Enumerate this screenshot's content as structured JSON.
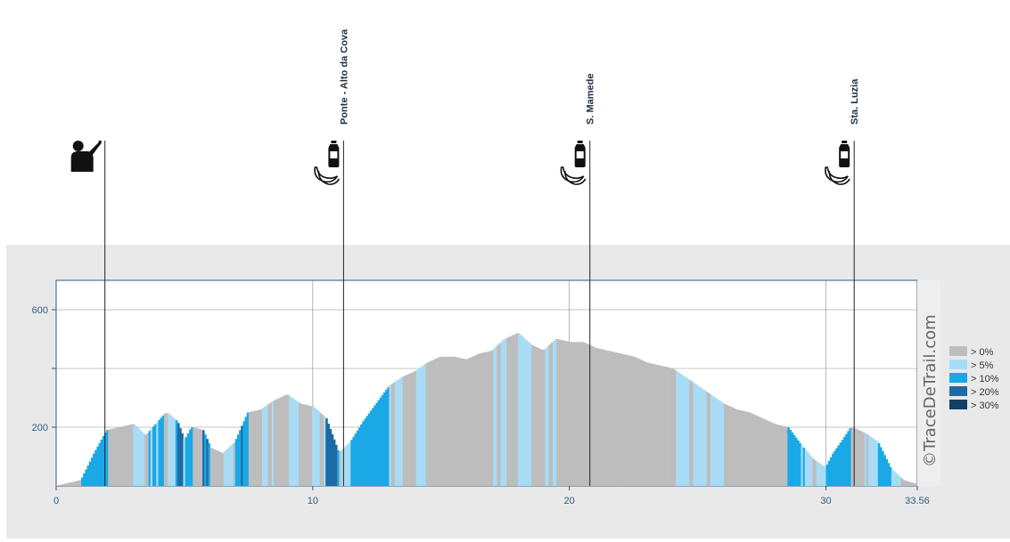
{
  "chart_data": {
    "type": "area",
    "x_range": [
      0,
      33.56
    ],
    "y_range": [
      0,
      700
    ],
    "x_ticks": [
      0,
      10,
      20,
      30,
      33.56
    ],
    "x_tick_labels": [
      "0",
      "10",
      "20",
      "30",
      "33.56"
    ],
    "y_ticks": [
      200,
      600
    ],
    "y_tick_labels": [
      "200",
      "600"
    ],
    "grid": true,
    "legend_position": "right",
    "legend": [
      {
        "label": "> 0%",
        "color": "#bdbdbd"
      },
      {
        "label": "> 5%",
        "color": "#a8dcf5"
      },
      {
        "label": "> 10%",
        "color": "#1ba8e6"
      },
      {
        "label": "> 20%",
        "color": "#1d6aa6"
      },
      {
        "label": "> 30%",
        "color": "#153e66"
      }
    ],
    "elevation_profile": {
      "x": [
        0,
        1,
        1.5,
        2,
        2.5,
        3,
        3.5,
        4,
        4.3,
        4.7,
        5,
        5.3,
        5.7,
        6,
        6.5,
        7,
        7.5,
        8,
        8.5,
        9,
        9.5,
        10,
        10.5,
        11,
        11.5,
        12,
        12.5,
        13,
        13.5,
        14,
        14.5,
        15,
        15.5,
        16,
        16.5,
        17,
        17.5,
        18,
        18.5,
        19,
        19.5,
        20,
        20.5,
        21,
        21.5,
        22,
        22.5,
        23,
        23.5,
        24,
        24.5,
        25,
        25.5,
        26,
        26.5,
        27,
        27.5,
        28,
        28.5,
        29,
        29.5,
        30,
        30.3,
        30.7,
        31,
        31.5,
        32,
        32.5,
        33,
        33.56
      ],
      "y": [
        0,
        20,
        110,
        190,
        200,
        210,
        170,
        220,
        250,
        220,
        150,
        200,
        190,
        130,
        110,
        150,
        250,
        260,
        290,
        310,
        280,
        270,
        230,
        110,
        150,
        220,
        280,
        340,
        370,
        390,
        420,
        440,
        440,
        430,
        450,
        460,
        500,
        520,
        480,
        460,
        500,
        490,
        490,
        470,
        460,
        450,
        440,
        420,
        410,
        400,
        370,
        340,
        310,
        280,
        260,
        250,
        230,
        210,
        200,
        140,
        90,
        60,
        110,
        160,
        200,
        180,
        150,
        60,
        20,
        5
      ]
    },
    "markers": [
      {
        "x": 1.9,
        "label": "",
        "icons": [
          "drink-icon"
        ]
      },
      {
        "x": 11.2,
        "label": "Ponte - Alto da Cova",
        "icons": [
          "water-bottle-icon",
          "banana-icon"
        ]
      },
      {
        "x": 20.8,
        "label": "S. Mamede",
        "icons": [
          "water-bottle-icon",
          "banana-icon"
        ]
      },
      {
        "x": 31.1,
        "label": "Sta. Luzia",
        "icons": [
          "water-bottle-icon",
          "banana-icon"
        ]
      }
    ]
  },
  "watermark": "©TraceDeTrail.com",
  "colors": {
    "panel": "#e9e9e9",
    "plot_border": "#2b5a86",
    "tick_text": "#2b5a86"
  }
}
